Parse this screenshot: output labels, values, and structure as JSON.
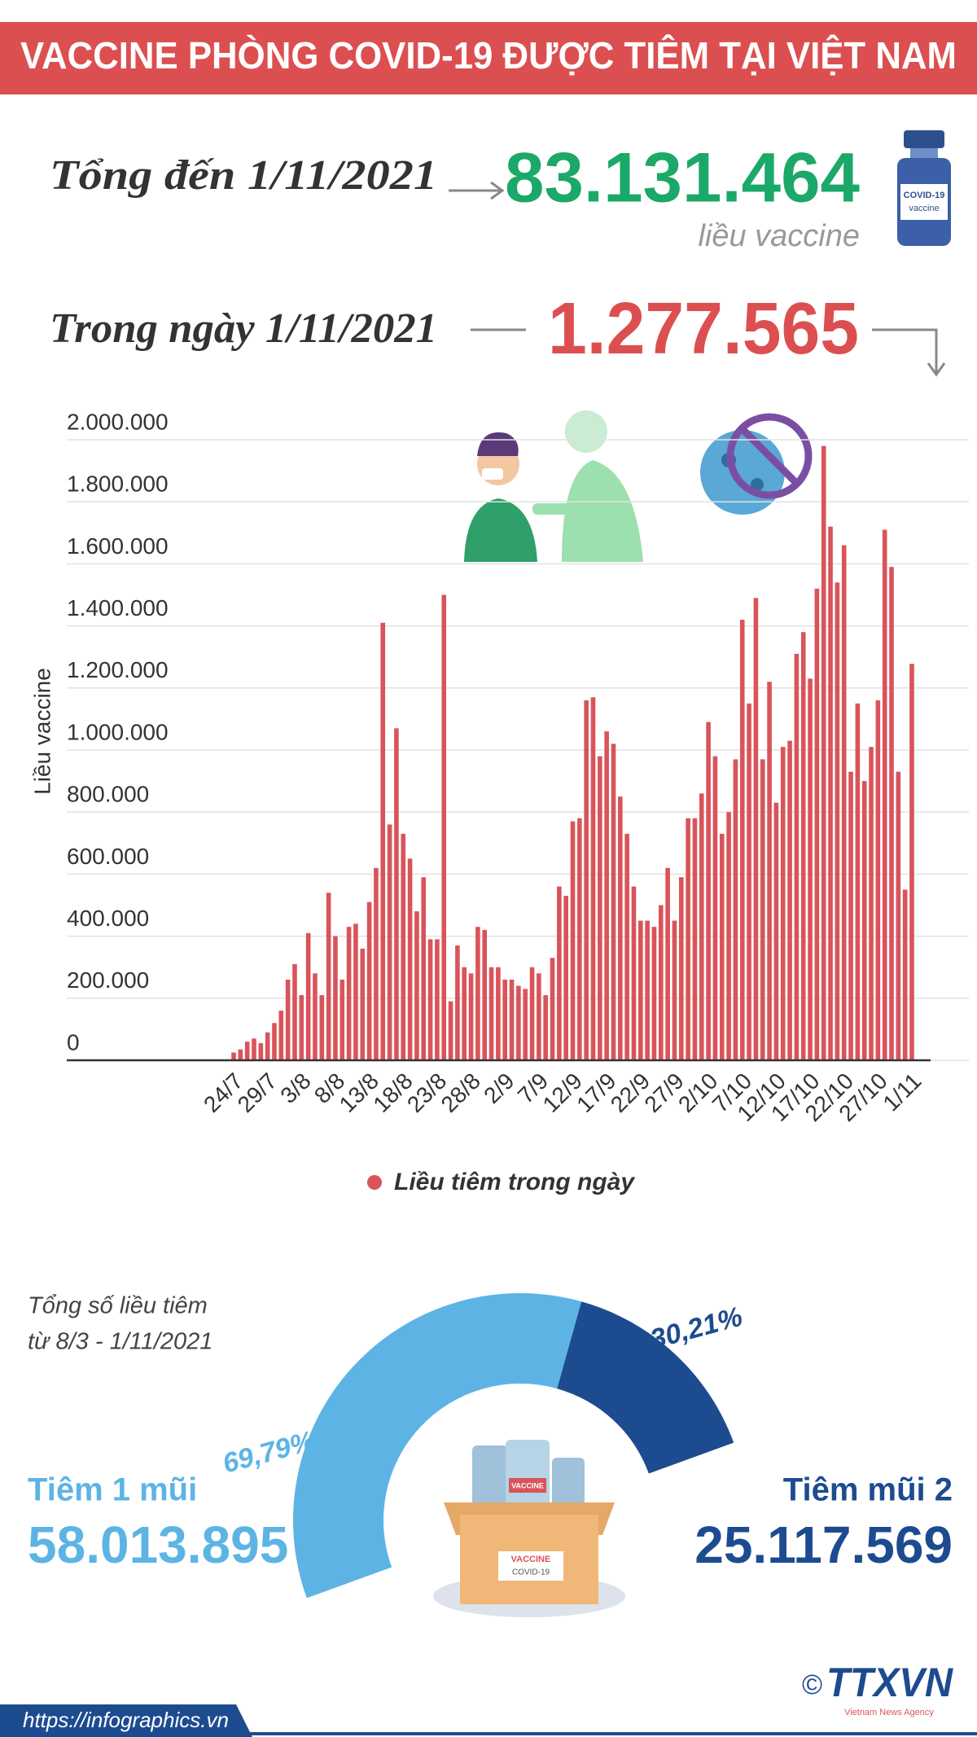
{
  "header": {
    "title": "VACCINE PHÒNG COVID-19 ĐƯỢC TIÊM TẠI VIỆT NAM"
  },
  "summary": {
    "total_label": "Tổng đến 1/11/2021",
    "total_value": "83.131.464",
    "total_unit": "liều vaccine",
    "daily_label": "Trong ngày 1/11/2021",
    "daily_value": "1.277.565"
  },
  "illustrations": {
    "vial_title": "COVID-19",
    "vial_subtitle": "vaccine",
    "box_title": "VACCINE",
    "box_subtitle": "COVID-19",
    "bottle_label": "VACCINE"
  },
  "chart_data": [
    {
      "type": "bar",
      "y_label": "Liều vaccine",
      "categories": [
        "24/7",
        null,
        null,
        null,
        null,
        "29/7",
        null,
        null,
        null,
        null,
        "3/8",
        null,
        null,
        null,
        null,
        "8/8",
        null,
        null,
        null,
        null,
        "13/8",
        null,
        null,
        null,
        null,
        "18/8",
        null,
        null,
        null,
        null,
        "23/8",
        null,
        null,
        null,
        null,
        "28/8",
        null,
        null,
        null,
        null,
        "2/9",
        null,
        null,
        null,
        null,
        "7/9",
        null,
        null,
        null,
        null,
        "12/9",
        null,
        null,
        null,
        null,
        "17/9",
        null,
        null,
        null,
        null,
        "22/9",
        null,
        null,
        null,
        null,
        "27/9",
        null,
        null,
        null,
        null,
        "2/10",
        null,
        null,
        null,
        null,
        "7/10",
        null,
        null,
        null,
        null,
        "12/10",
        null,
        null,
        null,
        null,
        "17/10",
        null,
        null,
        null,
        null,
        "22/10",
        null,
        null,
        null,
        null,
        "27/10",
        null,
        null,
        null,
        null,
        "1/11"
      ],
      "series": [
        {
          "name": "Liều tiêm trong ngày",
          "color": "#d9545a",
          "values": [
            25000,
            35000,
            60000,
            70000,
            55000,
            90000,
            120000,
            160000,
            260000,
            310000,
            210000,
            410000,
            280000,
            210000,
            540000,
            400000,
            260000,
            430000,
            440000,
            360000,
            510000,
            620000,
            1410000,
            760000,
            1070000,
            730000,
            650000,
            480000,
            590000,
            390000,
            390000,
            1500000,
            190000,
            370000,
            300000,
            280000,
            430000,
            420000,
            300000,
            300000,
            260000,
            260000,
            240000,
            230000,
            300000,
            280000,
            210000,
            330000,
            560000,
            530000,
            770000,
            780000,
            1160000,
            1170000,
            980000,
            1060000,
            1020000,
            850000,
            730000,
            560000,
            450000,
            450000,
            430000,
            500000,
            620000,
            450000,
            590000,
            780000,
            780000,
            860000,
            1090000,
            980000,
            730000,
            800000,
            970000,
            1420000,
            1150000,
            1490000,
            970000,
            1220000,
            830000,
            1010000,
            1030000,
            1310000,
            1380000,
            1230000,
            1520000,
            1980000,
            1720000,
            1540000,
            1660000,
            930000,
            1150000,
            900000,
            1010000,
            1160000,
            1710000,
            1590000,
            930000,
            550000,
            1277565
          ]
        }
      ],
      "ylim": [
        0,
        2000000
      ],
      "yticks": [
        0,
        {
          "value": 200000,
          "label": "200.000"
        },
        {
          "value": 400000,
          "label": "400.000"
        },
        {
          "value": 600000,
          "label": "600.000"
        },
        {
          "value": 800000,
          "label": "800.000"
        },
        {
          "value": 1000000,
          "label": "1.000.000"
        },
        {
          "value": 1200000,
          "label": "1.200.000"
        },
        {
          "value": 1400000,
          "label": "1.400.000"
        },
        {
          "value": 1600000,
          "label": "1.600.000"
        },
        {
          "value": 1800000,
          "label": "1.800.000"
        },
        {
          "value": 2000000,
          "label": "2.000.000"
        }
      ],
      "grid": true,
      "legend": "bottom"
    },
    {
      "type": "pie",
      "title": [
        "Tổng số liều tiêm",
        "từ 8/3 - 1/11/2021"
      ],
      "categories": [
        "Tiêm 1 mũi",
        "Tiêm mũi 2"
      ],
      "values": [
        69.79,
        30.21
      ],
      "value_labels": [
        "69,79%",
        "30,21%"
      ],
      "totals": [
        "58.013.895",
        "25.117.569"
      ],
      "colors": [
        "#5db4e4",
        "#1d4b8f"
      ]
    }
  ],
  "footer": {
    "url": "https://infographics.vn",
    "copyright": "©",
    "agency": "TTXVN",
    "agency_subtitle": "Vietnam News Agency"
  }
}
